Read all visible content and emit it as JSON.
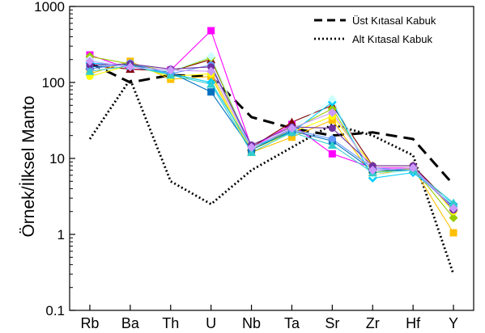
{
  "chart_data": {
    "type": "line",
    "title": "",
    "xlabel": "",
    "ylabel": "Örnek/İlksel Manto",
    "yscale": "log",
    "ylim": [
      0.1,
      1000
    ],
    "y_ticks": [
      "0.1",
      "1",
      "10",
      "100",
      "1000"
    ],
    "categories": [
      "Rb",
      "Ba",
      "Th",
      "U",
      "Nb",
      "Ta",
      "Sr",
      "Zr",
      "Hf",
      "Y"
    ],
    "legend_position": "top-right",
    "reference_series": [
      {
        "name": "Üst Kıtasal Kabuk",
        "style": "dashed",
        "color": "#000000",
        "values": [
          180,
          100,
          125,
          120,
          35,
          25,
          20,
          22,
          18,
          4.5
        ]
      },
      {
        "name": "Alt Kıtasal Kabuk",
        "style": "dotted",
        "color": "#000000",
        "values": [
          18,
          110,
          5,
          2.5,
          7,
          14,
          28,
          20,
          11,
          0.3
        ]
      }
    ],
    "samples": [
      {
        "color": "#ff00ff",
        "marker": "square",
        "values": [
          230,
          150,
          145,
          480,
          14,
          28,
          11.5,
          7.5,
          7.5,
          2.2
        ]
      },
      {
        "color": "#800000",
        "marker": "triangle",
        "values": [
          165,
          150,
          140,
          200,
          14,
          30,
          50,
          8,
          8,
          2.3
        ]
      },
      {
        "color": "#ffc000",
        "marker": "square",
        "values": [
          130,
          190,
          110,
          120,
          12,
          19,
          32,
          6,
          7.5,
          1.05
        ]
      },
      {
        "color": "#99cc00",
        "marker": "diamond",
        "values": [
          220,
          175,
          140,
          210,
          13,
          24,
          45,
          6.5,
          7.5,
          1.65
        ]
      },
      {
        "color": "#ffff00",
        "marker": "circle",
        "values": [
          120,
          170,
          120,
          130,
          13,
          22,
          36,
          8,
          8,
          2.0
        ]
      },
      {
        "color": "#00ccff",
        "marker": "diamond",
        "values": [
          180,
          165,
          130,
          100,
          14,
          22,
          55,
          5.5,
          6.5,
          2.5
        ]
      },
      {
        "color": "#0070c0",
        "marker": "square",
        "values": [
          160,
          170,
          135,
          75,
          13,
          23,
          17,
          7,
          7,
          2.3
        ]
      },
      {
        "color": "#ccffff",
        "marker": "diamond",
        "values": [
          200,
          160,
          140,
          220,
          14,
          25,
          60,
          6,
          7,
          2.4
        ]
      },
      {
        "color": "#6699ff",
        "marker": "circle",
        "values": [
          150,
          180,
          130,
          170,
          14,
          24,
          18,
          7.5,
          7,
          2.2
        ]
      },
      {
        "color": "#7030a0",
        "marker": "circle",
        "values": [
          170,
          175,
          150,
          160,
          15,
          26,
          25,
          8,
          8,
          2.1
        ]
      },
      {
        "color": "#33cccc",
        "marker": "triangle",
        "values": [
          140,
          165,
          125,
          95,
          12,
          22,
          15,
          6.5,
          7,
          2.6
        ]
      },
      {
        "color": "#cc99ff",
        "marker": "diamond",
        "values": [
          190,
          160,
          145,
          140,
          14,
          25,
          40,
          7,
          7.5,
          2.2
        ]
      }
    ]
  }
}
